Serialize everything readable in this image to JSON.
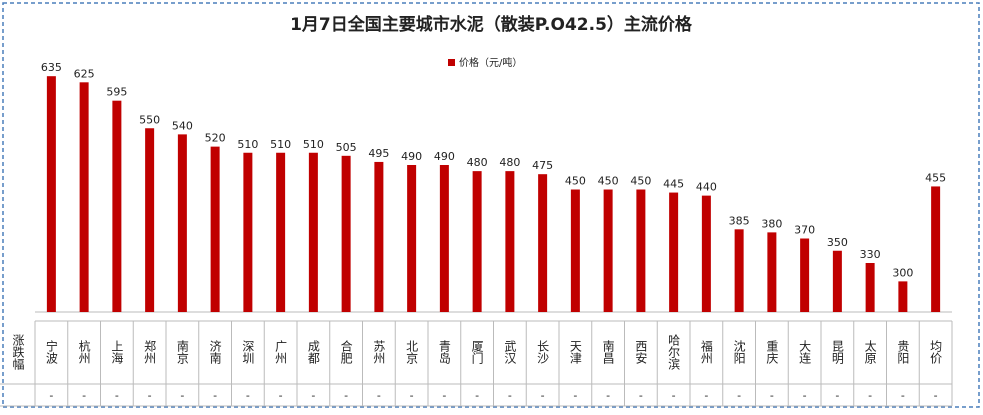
{
  "chart_data": {
    "type": "bar",
    "title": "1月7日全国主要城市水泥（散装P.O42.5）主流价格",
    "series": [
      {
        "name": "价格（元/吨）",
        "color": "#c00000",
        "values": [
          635,
          625,
          595,
          550,
          540,
          520,
          510,
          510,
          510,
          505,
          495,
          490,
          490,
          480,
          480,
          475,
          450,
          450,
          450,
          445,
          440,
          385,
          380,
          370,
          350,
          330,
          300,
          455
        ]
      }
    ],
    "categories": [
      "宁波",
      "杭州",
      "上海",
      "郑州",
      "南京",
      "济南",
      "深圳",
      "广州",
      "成都",
      "合肥",
      "苏州",
      "北京",
      "青岛",
      "厦门",
      "武汉",
      "长沙",
      "天津",
      "南昌",
      "西安",
      "哈尔滨",
      "福州",
      "沈阳",
      "重庆",
      "大连",
      "昆明",
      "太原",
      "贵阳",
      "均价"
    ],
    "ylim": [
      250,
      650
    ],
    "change_label": "涨跌幅",
    "changes": [
      "-",
      "-",
      "-",
      "-",
      "-",
      "-",
      "-",
      "-",
      "-",
      "-",
      "-",
      "-",
      "-",
      "-",
      "-",
      "-",
      "-",
      "-",
      "-",
      "-",
      "-",
      "-",
      "-",
      "-",
      "-",
      "-",
      "-",
      "-"
    ]
  }
}
